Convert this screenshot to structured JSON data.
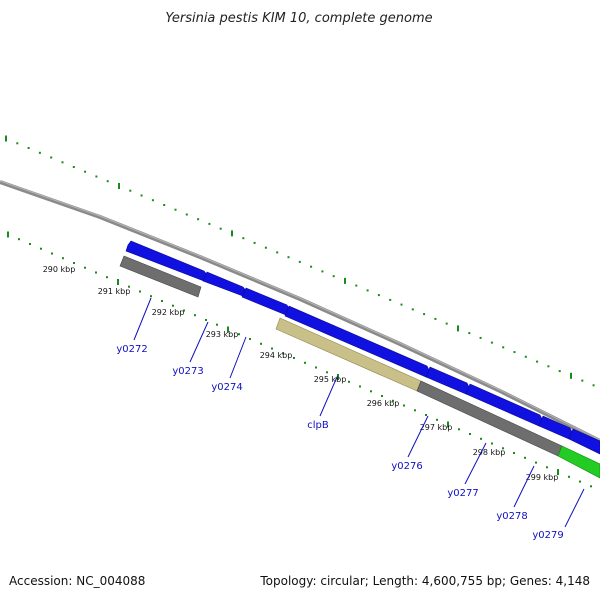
{
  "title": "Yersinia pestis KIM 10, complete genome",
  "footer": {
    "accession": "Accession: NC_004088",
    "summary": "Topology: circular; Length: 4,600,755 bp; Genes: 4,148"
  },
  "colors": {
    "backbone": "#8a8a8a",
    "forward_gene": "#1010e0",
    "reverse_gene": "#6e6e6e",
    "clpB_gene": "#c8c088",
    "green_gene": "#22cc22",
    "tick": "#1a8a1a",
    "label": "#1010c0"
  },
  "ticks": [
    {
      "label": "290 kbp"
    },
    {
      "label": "291 kbp"
    },
    {
      "label": "292 kbp"
    },
    {
      "label": "293 kbp"
    },
    {
      "label": "294 kbp"
    },
    {
      "label": "295 kbp"
    },
    {
      "label": "296 kbp"
    },
    {
      "label": "297 kbp"
    },
    {
      "label": "298 kbp"
    },
    {
      "label": "299 kbp"
    }
  ],
  "genes": [
    {
      "label": "y0272"
    },
    {
      "label": "y0273"
    },
    {
      "label": "y0274"
    },
    {
      "label": "clpB"
    },
    {
      "label": "y0276"
    },
    {
      "label": "y0277"
    },
    {
      "label": "y0278"
    },
    {
      "label": "y0279"
    }
  ]
}
